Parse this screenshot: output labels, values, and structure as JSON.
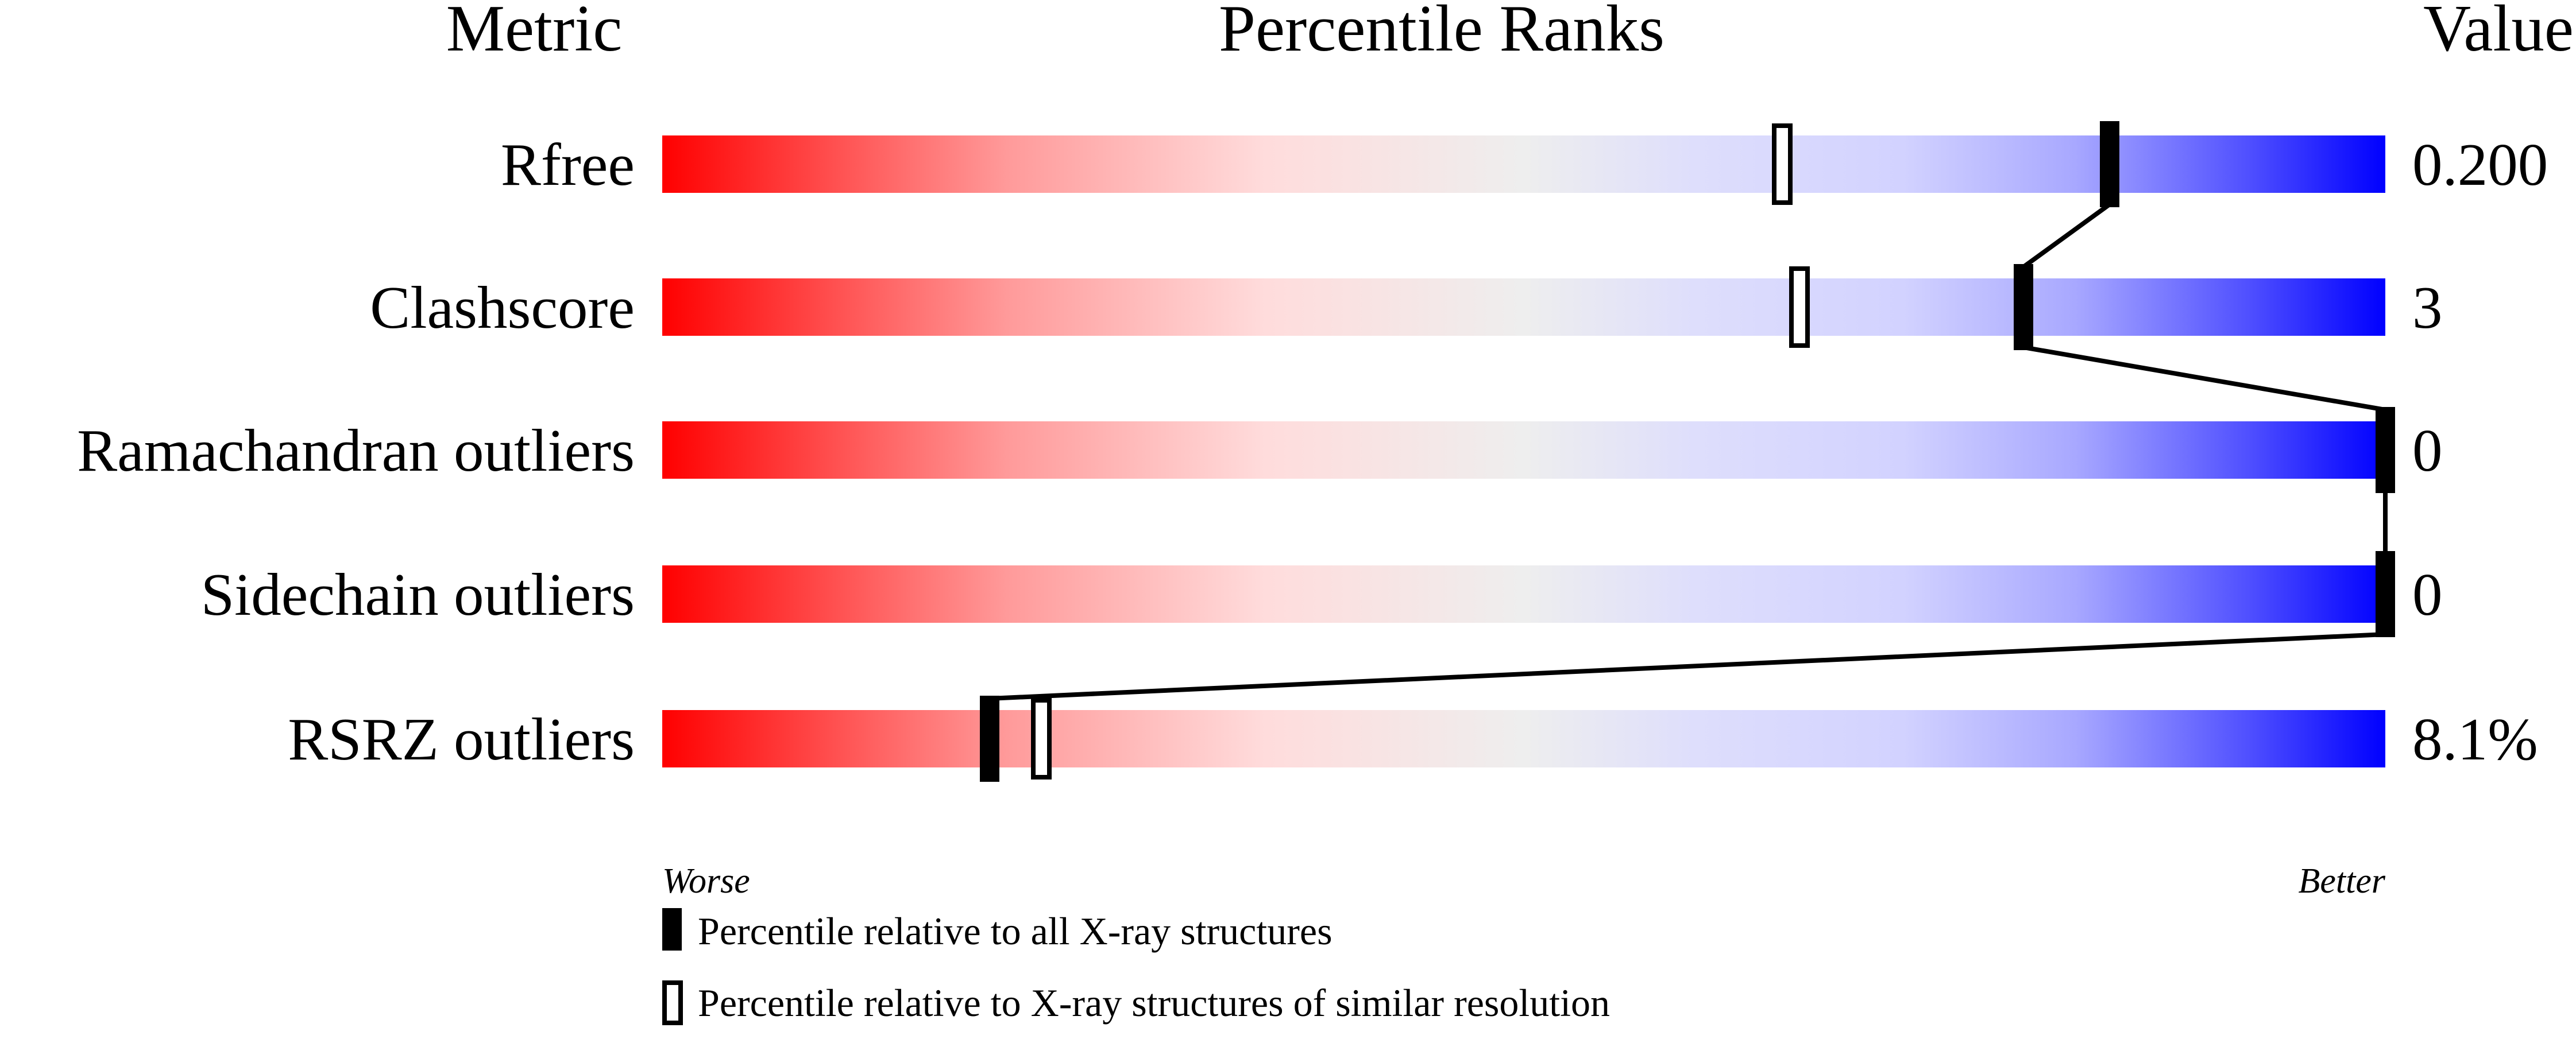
{
  "chart_data": {
    "type": "bar",
    "title": "Percentile Ranks",
    "headers": {
      "metric": "Metric",
      "ranks": "Percentile Ranks",
      "value": "Value"
    },
    "xlim": [
      0,
      100
    ],
    "axis_labels": {
      "left": "Worse",
      "right": "Better"
    },
    "rows": [
      {
        "metric": "Rfree",
        "value": "0.200",
        "percentile_all": 84,
        "percentile_similar": 65
      },
      {
        "metric": "Clashscore",
        "value": "3",
        "percentile_all": 79,
        "percentile_similar": 66
      },
      {
        "metric": "Ramachandran outliers",
        "value": "0",
        "percentile_all": 100,
        "percentile_similar": null
      },
      {
        "metric": "Sidechain outliers",
        "value": "0",
        "percentile_all": 100,
        "percentile_similar": null
      },
      {
        "metric": "RSRZ outliers",
        "value": "8.1%",
        "percentile_all": 19,
        "percentile_similar": 22
      }
    ],
    "legend": {
      "all": "Percentile relative to all X-ray structures",
      "similar": "Percentile relative to X-ray structures of similar resolution",
      "placement": "bottom"
    },
    "colors": {
      "worse": "#ff0000",
      "middle": "#eeeeee",
      "better": "#0000ff",
      "marker": "#000000"
    }
  }
}
